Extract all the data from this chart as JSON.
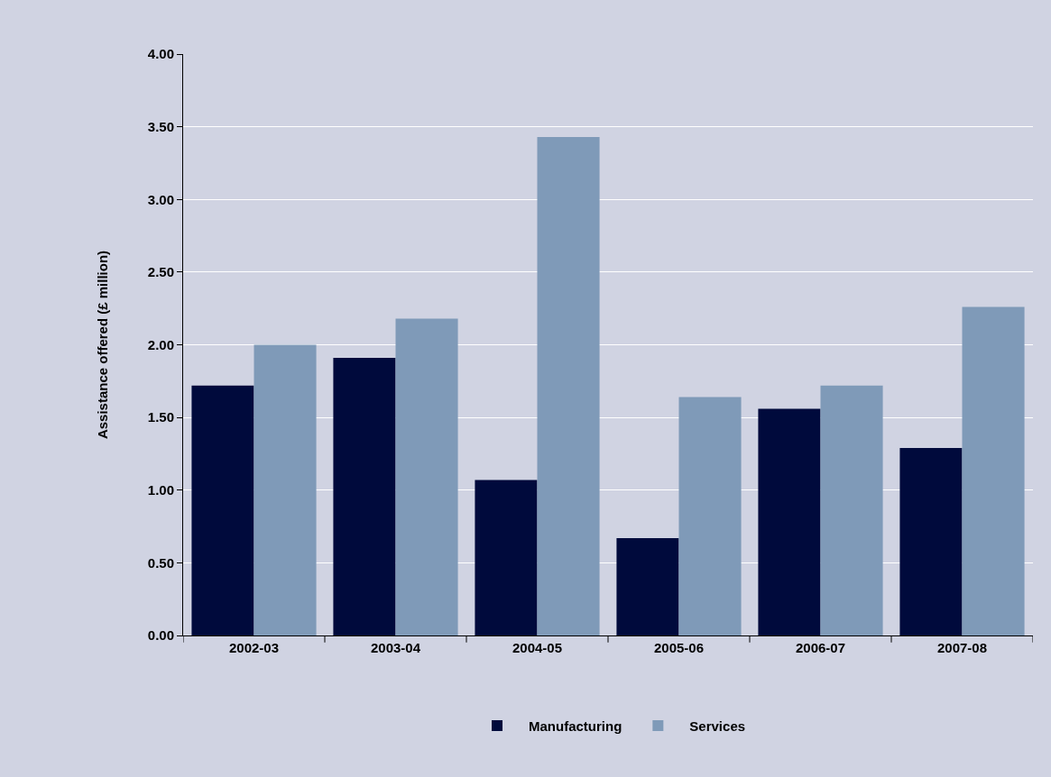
{
  "chart_data": {
    "type": "bar",
    "ylabel": "Assistance offered (£ million)",
    "categories": [
      "2002-03",
      "2003-04",
      "2004-05",
      "2005-06",
      "2006-07",
      "2007-08"
    ],
    "series": [
      {
        "name": "Manufacturing",
        "color": "#000a3c",
        "values": [
          1.72,
          1.91,
          1.07,
          0.67,
          1.56,
          1.29
        ]
      },
      {
        "name": "Services",
        "color": "#7f9ab8",
        "values": [
          2.0,
          2.18,
          3.43,
          1.64,
          1.72,
          2.26
        ]
      }
    ],
    "ylim": [
      0,
      4
    ],
    "yticks": [
      {
        "value": 0,
        "label": "0.00"
      },
      {
        "value": 0.5,
        "label": "0.50"
      },
      {
        "value": 1,
        "label": "1.00"
      },
      {
        "value": 1.5,
        "label": "1.50"
      },
      {
        "value": 2,
        "label": "2.00"
      },
      {
        "value": 2.5,
        "label": "2.50"
      },
      {
        "value": 3,
        "label": "3.00"
      },
      {
        "value": 3.5,
        "label": "3.50"
      },
      {
        "value": 4,
        "label": "4.00"
      }
    ],
    "grid": "y",
    "legend": "bottom"
  }
}
